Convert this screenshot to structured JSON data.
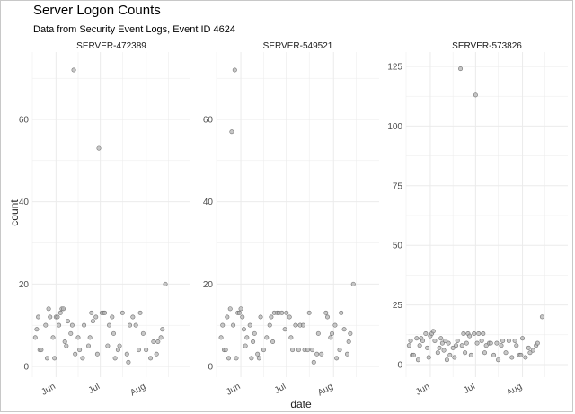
{
  "header": {
    "title": "Server Logon Counts",
    "subtitle": "Data from Security Event Logs, Event ID 4624"
  },
  "colors": {
    "point_fill": "#b5b5b5",
    "point_stroke": "#6e6e6e",
    "grid": "#ebebeb"
  },
  "chart_data": {
    "type": "scatter",
    "xlabel": "date",
    "ylabel": "count",
    "x_tick_labels": [
      "Jun",
      "Jul",
      "Aug"
    ],
    "x_ticks": [
      "2023-06-01",
      "2023-07-01",
      "2023-08-01"
    ],
    "xlim": [
      "2023-05-16",
      "2023-08-31"
    ],
    "grid": true,
    "panels": [
      {
        "name": "SERVER-472389",
        "ylim": [
          0,
          75
        ],
        "y_ticks": [
          0,
          20,
          40,
          60
        ],
        "points": [
          [
            "2023-05-18",
            7
          ],
          [
            "2023-05-19",
            9
          ],
          [
            "2023-05-20",
            12
          ],
          [
            "2023-05-21",
            4
          ],
          [
            "2023-05-22",
            4
          ],
          [
            "2023-05-25",
            10
          ],
          [
            "2023-05-26",
            2
          ],
          [
            "2023-05-27",
            14
          ],
          [
            "2023-05-28",
            12
          ],
          [
            "2023-05-30",
            7
          ],
          [
            "2023-05-31",
            2
          ],
          [
            "2023-06-01",
            12
          ],
          [
            "2023-06-02",
            12
          ],
          [
            "2023-06-03",
            10
          ],
          [
            "2023-06-04",
            13
          ],
          [
            "2023-06-05",
            14
          ],
          [
            "2023-06-06",
            14
          ],
          [
            "2023-06-07",
            6
          ],
          [
            "2023-06-08",
            5
          ],
          [
            "2023-06-09",
            11
          ],
          [
            "2023-06-11",
            8
          ],
          [
            "2023-06-12",
            10
          ],
          [
            "2023-06-13",
            72
          ],
          [
            "2023-06-14",
            3
          ],
          [
            "2023-06-16",
            7
          ],
          [
            "2023-06-17",
            4
          ],
          [
            "2023-06-19",
            2
          ],
          [
            "2023-06-20",
            10
          ],
          [
            "2023-06-23",
            5
          ],
          [
            "2023-06-24",
            7
          ],
          [
            "2023-06-25",
            13
          ],
          [
            "2023-06-26",
            11
          ],
          [
            "2023-06-28",
            12
          ],
          [
            "2023-06-29",
            3
          ],
          [
            "2023-06-30",
            53
          ],
          [
            "2023-07-02",
            13
          ],
          [
            "2023-07-03",
            13
          ],
          [
            "2023-07-04",
            13
          ],
          [
            "2023-07-06",
            5
          ],
          [
            "2023-07-07",
            10
          ],
          [
            "2023-07-09",
            12
          ],
          [
            "2023-07-10",
            8
          ],
          [
            "2023-07-11",
            2
          ],
          [
            "2023-07-13",
            4
          ],
          [
            "2023-07-14",
            5
          ],
          [
            "2023-07-16",
            13
          ],
          [
            "2023-07-19",
            3
          ],
          [
            "2023-07-20",
            1
          ],
          [
            "2023-07-21",
            10
          ],
          [
            "2023-07-23",
            12
          ],
          [
            "2023-07-25",
            10
          ],
          [
            "2023-07-27",
            4
          ],
          [
            "2023-07-28",
            13
          ],
          [
            "2023-07-30",
            8
          ],
          [
            "2023-08-01",
            4
          ],
          [
            "2023-08-04",
            2
          ],
          [
            "2023-08-06",
            6
          ],
          [
            "2023-08-08",
            3
          ],
          [
            "2023-08-09",
            6
          ],
          [
            "2023-08-11",
            7
          ],
          [
            "2023-08-12",
            9
          ],
          [
            "2023-08-14",
            20
          ]
        ]
      },
      {
        "name": "SERVER-549521",
        "ylim": [
          0,
          75
        ],
        "y_ticks": [
          0,
          20,
          40,
          60
        ],
        "points": [
          [
            "2023-05-19",
            7
          ],
          [
            "2023-05-20",
            10
          ],
          [
            "2023-05-21",
            4
          ],
          [
            "2023-05-22",
            4
          ],
          [
            "2023-05-23",
            12
          ],
          [
            "2023-05-24",
            2
          ],
          [
            "2023-05-25",
            14
          ],
          [
            "2023-05-26",
            57
          ],
          [
            "2023-05-27",
            10
          ],
          [
            "2023-05-28",
            72
          ],
          [
            "2023-05-29",
            2
          ],
          [
            "2023-05-30",
            13
          ],
          [
            "2023-05-31",
            13
          ],
          [
            "2023-06-01",
            14
          ],
          [
            "2023-06-02",
            12
          ],
          [
            "2023-06-03",
            9
          ],
          [
            "2023-06-04",
            5
          ],
          [
            "2023-06-05",
            7
          ],
          [
            "2023-06-07",
            10
          ],
          [
            "2023-06-08",
            2
          ],
          [
            "2023-06-09",
            6
          ],
          [
            "2023-06-10",
            8
          ],
          [
            "2023-06-12",
            3
          ],
          [
            "2023-06-13",
            2
          ],
          [
            "2023-06-14",
            12
          ],
          [
            "2023-06-16",
            4
          ],
          [
            "2023-06-18",
            7
          ],
          [
            "2023-06-20",
            10
          ],
          [
            "2023-06-21",
            12
          ],
          [
            "2023-06-22",
            6
          ],
          [
            "2023-06-23",
            13
          ],
          [
            "2023-06-25",
            13
          ],
          [
            "2023-06-26",
            13
          ],
          [
            "2023-06-28",
            13
          ],
          [
            "2023-06-30",
            9
          ],
          [
            "2023-07-01",
            13
          ],
          [
            "2023-07-03",
            12
          ],
          [
            "2023-07-04",
            7
          ],
          [
            "2023-07-05",
            4
          ],
          [
            "2023-07-07",
            10
          ],
          [
            "2023-07-09",
            4
          ],
          [
            "2023-07-10",
            10
          ],
          [
            "2023-07-12",
            10
          ],
          [
            "2023-07-13",
            4
          ],
          [
            "2023-07-15",
            4
          ],
          [
            "2023-07-16",
            13
          ],
          [
            "2023-07-18",
            4
          ],
          [
            "2023-07-19",
            1
          ],
          [
            "2023-07-21",
            3
          ],
          [
            "2023-07-22",
            8
          ],
          [
            "2023-07-24",
            3
          ],
          [
            "2023-07-27",
            13
          ],
          [
            "2023-07-28",
            12
          ],
          [
            "2023-07-30",
            7
          ],
          [
            "2023-07-31",
            8
          ],
          [
            "2023-08-02",
            10
          ],
          [
            "2023-08-03",
            2
          ],
          [
            "2023-08-05",
            4
          ],
          [
            "2023-08-06",
            13
          ],
          [
            "2023-08-08",
            9
          ],
          [
            "2023-08-10",
            3
          ],
          [
            "2023-08-11",
            6
          ],
          [
            "2023-08-12",
            8
          ],
          [
            "2023-08-14",
            20
          ]
        ]
      },
      {
        "name": "SERVER-573826",
        "ylim": [
          0,
          125
        ],
        "y_ticks": [
          0,
          25,
          50,
          75,
          100,
          125
        ],
        "points": [
          [
            "2023-05-18",
            8
          ],
          [
            "2023-05-19",
            10
          ],
          [
            "2023-05-20",
            4
          ],
          [
            "2023-05-21",
            4
          ],
          [
            "2023-05-23",
            11
          ],
          [
            "2023-05-24",
            2
          ],
          [
            "2023-05-25",
            8
          ],
          [
            "2023-05-26",
            11
          ],
          [
            "2023-05-27",
            10
          ],
          [
            "2023-05-29",
            13
          ],
          [
            "2023-05-30",
            7
          ],
          [
            "2023-05-31",
            3
          ],
          [
            "2023-06-01",
            12
          ],
          [
            "2023-06-02",
            13
          ],
          [
            "2023-06-03",
            14
          ],
          [
            "2023-06-04",
            10
          ],
          [
            "2023-06-06",
            5
          ],
          [
            "2023-06-07",
            7
          ],
          [
            "2023-06-08",
            11
          ],
          [
            "2023-06-09",
            9
          ],
          [
            "2023-06-10",
            6
          ],
          [
            "2023-06-11",
            10
          ],
          [
            "2023-06-12",
            2
          ],
          [
            "2023-06-13",
            9
          ],
          [
            "2023-06-14",
            4
          ],
          [
            "2023-06-16",
            7
          ],
          [
            "2023-06-17",
            3
          ],
          [
            "2023-06-18",
            8
          ],
          [
            "2023-06-19",
            10
          ],
          [
            "2023-06-21",
            124
          ],
          [
            "2023-06-22",
            8
          ],
          [
            "2023-06-23",
            13
          ],
          [
            "2023-06-24",
            5
          ],
          [
            "2023-06-25",
            9
          ],
          [
            "2023-06-26",
            13
          ],
          [
            "2023-06-27",
            12
          ],
          [
            "2023-06-28",
            4
          ],
          [
            "2023-06-30",
            13
          ],
          [
            "2023-07-01",
            113
          ],
          [
            "2023-07-02",
            9
          ],
          [
            "2023-07-03",
            13
          ],
          [
            "2023-07-05",
            10
          ],
          [
            "2023-07-06",
            13
          ],
          [
            "2023-07-07",
            5
          ],
          [
            "2023-07-08",
            8
          ],
          [
            "2023-07-10",
            9
          ],
          [
            "2023-07-11",
            9
          ],
          [
            "2023-07-13",
            4
          ],
          [
            "2023-07-15",
            9
          ],
          [
            "2023-07-16",
            2
          ],
          [
            "2023-07-18",
            8
          ],
          [
            "2023-07-19",
            10
          ],
          [
            "2023-07-21",
            5
          ],
          [
            "2023-07-23",
            10
          ],
          [
            "2023-07-25",
            3
          ],
          [
            "2023-07-27",
            10
          ],
          [
            "2023-07-28",
            8
          ],
          [
            "2023-07-30",
            4
          ],
          [
            "2023-07-31",
            4
          ],
          [
            "2023-08-01",
            11
          ],
          [
            "2023-08-03",
            3
          ],
          [
            "2023-08-05",
            7
          ],
          [
            "2023-08-06",
            5
          ],
          [
            "2023-08-08",
            6
          ],
          [
            "2023-08-10",
            8
          ],
          [
            "2023-08-11",
            9
          ],
          [
            "2023-08-14",
            20
          ]
        ]
      }
    ]
  }
}
